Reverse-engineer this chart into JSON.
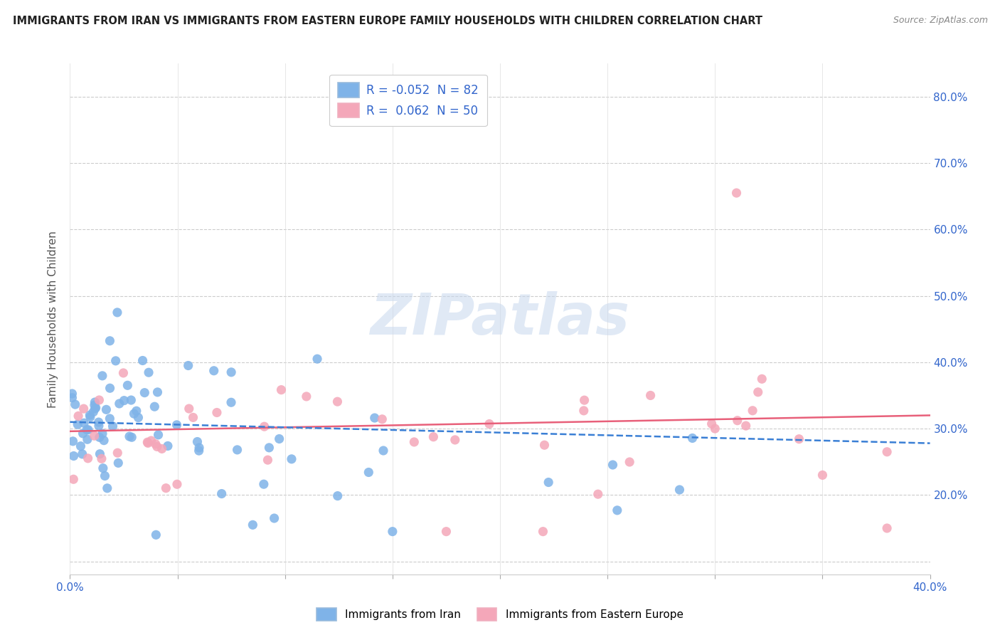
{
  "title": "IMMIGRANTS FROM IRAN VS IMMIGRANTS FROM EASTERN EUROPE FAMILY HOUSEHOLDS WITH CHILDREN CORRELATION CHART",
  "source": "Source: ZipAtlas.com",
  "ylabel": "Family Households with Children",
  "xlim": [
    0.0,
    0.4
  ],
  "ylim": [
    0.08,
    0.85
  ],
  "xtick_positions": [
    0.0,
    0.05,
    0.1,
    0.15,
    0.2,
    0.25,
    0.3,
    0.35,
    0.4
  ],
  "xtick_labels": [
    "0.0%",
    "",
    "",
    "",
    "",
    "",
    "",
    "",
    "40.0%"
  ],
  "ytick_positions": [
    0.1,
    0.2,
    0.3,
    0.4,
    0.5,
    0.6,
    0.7,
    0.8
  ],
  "ytick_labels": [
    "",
    "20.0%",
    "30.0%",
    "40.0%",
    "50.0%",
    "60.0%",
    "70.0%",
    "80.0%"
  ],
  "iran_R": -0.052,
  "iran_N": 82,
  "ee_R": 0.062,
  "ee_N": 50,
  "iran_color": "#7fb3e8",
  "ee_color": "#f4a7b9",
  "iran_line_color": "#3a7fd5",
  "ee_line_color": "#e8607a",
  "watermark_text": "ZIPatlas",
  "legend_label_iran": "R = -0.052  N = 82",
  "legend_label_ee": "R =  0.062  N = 50",
  "bottom_legend_iran": "Immigrants from Iran",
  "bottom_legend_ee": "Immigrants from Eastern Europe"
}
